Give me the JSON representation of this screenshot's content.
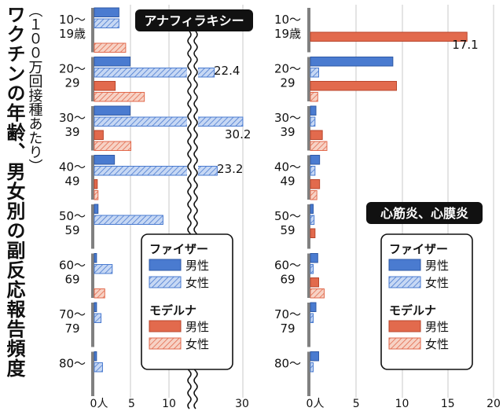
{
  "title": "ワクチンの年齢、男女別の副反応報告頻度",
  "unit_note": "（１００万回接種あたり）",
  "legend": {
    "pfizer": "ファイザー",
    "moderna": "モデルナ",
    "male": "男性",
    "female": "女性"
  },
  "colors": {
    "pfizer": "#4a7bd0",
    "pfizer_light": "#b9cdf0",
    "moderna": "#e26a4d",
    "moderna_light": "#f3c2b1",
    "axis": "#808080"
  },
  "age_groups": [
    [
      "10～",
      "19歳"
    ],
    [
      "20～",
      "29"
    ],
    [
      "30～",
      "39"
    ],
    [
      "40～",
      "49"
    ],
    [
      "50～",
      "59"
    ],
    [
      "60～",
      "69"
    ],
    [
      "70～",
      "79"
    ],
    [
      "80～",
      ""
    ]
  ],
  "chart_data": [
    {
      "type": "bar",
      "title": "アナフィラキシー",
      "orientation": "horizontal",
      "axis_break": true,
      "xlim": [
        0,
        30
      ],
      "ticks": [
        "0人",
        "5",
        "10",
        "30"
      ],
      "categories": [
        "10～19歳",
        "20～29",
        "30～39",
        "40～49",
        "50～59",
        "60～69",
        "70～79",
        "80～"
      ],
      "series": [
        {
          "name": "ファイザー 男性",
          "values": [
            3.3,
            4.8,
            4.8,
            2.7,
            0.5,
            0.3,
            0.3,
            0.3
          ]
        },
        {
          "name": "ファイザー 女性",
          "values": [
            3.3,
            22.4,
            30.2,
            23.2,
            9.2,
            2.4,
            0.9,
            1.1
          ]
        },
        {
          "name": "モデルナ 男性",
          "values": [
            null,
            2.8,
            1.2,
            0.4,
            null,
            null,
            null,
            null
          ]
        },
        {
          "name": "モデルナ 女性",
          "values": [
            4.2,
            6.7,
            4.9,
            0.5,
            null,
            1.4,
            null,
            null
          ]
        }
      ],
      "data_labels": [
        "22.4",
        "30.2",
        "23.2"
      ]
    },
    {
      "type": "bar",
      "title": "心筋炎、心膜炎",
      "orientation": "horizontal",
      "xlim": [
        0,
        20
      ],
      "ticks": [
        "0人",
        "5",
        "10",
        "15",
        "20"
      ],
      "categories": [
        "10～19歳",
        "20～29",
        "30～39",
        "40～49",
        "50～59",
        "60～69",
        "70～79",
        "80～"
      ],
      "series": [
        {
          "name": "ファイザー 男性",
          "values": [
            null,
            9.0,
            0.6,
            1.0,
            0.3,
            0.8,
            0.6,
            0.9
          ]
        },
        {
          "name": "ファイザー 女性",
          "values": [
            null,
            0.9,
            0.5,
            0.5,
            0.4,
            0.3,
            0.3,
            0.3
          ]
        },
        {
          "name": "モデルナ 男性",
          "values": [
            17.1,
            9.4,
            1.3,
            1.0,
            0.5,
            0.9,
            null,
            null
          ]
        },
        {
          "name": "モデルナ 女性",
          "values": [
            null,
            0.8,
            1.8,
            0.7,
            null,
            1.5,
            null,
            null
          ]
        }
      ],
      "data_labels": [
        "17.1"
      ]
    }
  ]
}
